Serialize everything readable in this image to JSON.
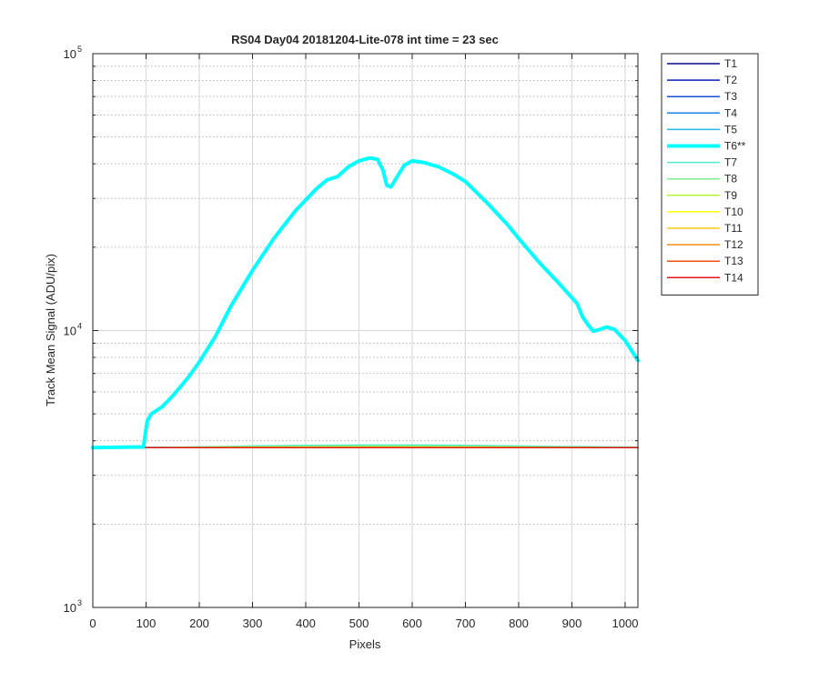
{
  "chart_data": {
    "type": "line",
    "title": "RS04 Day04 20181204-Lite-078 int time = 23 sec",
    "xlabel": "Pixels",
    "ylabel": "Track Mean Signal (ADU/pix)",
    "xlim": [
      0,
      1024
    ],
    "ylim": [
      1000,
      100000
    ],
    "yscale": "log",
    "grid": true,
    "legend_position": "outside-top-right",
    "x_ticks": [
      0,
      100,
      200,
      300,
      400,
      500,
      600,
      700,
      800,
      900,
      1000
    ],
    "x_tick_labels": [
      "0",
      "100",
      "200",
      "300",
      "400",
      "500",
      "600",
      "700",
      "800",
      "900",
      "1000"
    ],
    "y_ticks": [
      1000,
      10000,
      100000
    ],
    "y_tick_base": [
      "10",
      "10",
      "10"
    ],
    "y_tick_exp": [
      "3",
      "4",
      "5"
    ],
    "x": [
      0,
      100,
      200,
      300,
      400,
      500,
      600,
      700,
      800,
      900,
      1024
    ],
    "series": [
      {
        "name": "T1",
        "color": "#0a0a8c",
        "width": 1.5,
        "values": [
          3780,
          3780,
          3780,
          3780,
          3780,
          3780,
          3780,
          3780,
          3780,
          3780,
          3780
        ]
      },
      {
        "name": "T2",
        "color": "#0a1eb4",
        "width": 1.5,
        "values": [
          3780,
          3780,
          3780,
          3780,
          3780,
          3780,
          3780,
          3780,
          3780,
          3780,
          3780
        ]
      },
      {
        "name": "T3",
        "color": "#1450dc",
        "width": 1.5,
        "values": [
          3780,
          3780,
          3780,
          3780,
          3785,
          3785,
          3785,
          3780,
          3780,
          3780,
          3780
        ]
      },
      {
        "name": "T4",
        "color": "#1e82e6",
        "width": 1.5,
        "values": [
          3780,
          3780,
          3785,
          3790,
          3795,
          3800,
          3800,
          3795,
          3790,
          3785,
          3780
        ]
      },
      {
        "name": "T5",
        "color": "#28b4f0",
        "width": 1.5,
        "values": [
          3780,
          3785,
          3795,
          3810,
          3825,
          3835,
          3835,
          3825,
          3810,
          3795,
          3785
        ]
      },
      {
        "name": "T6**",
        "color": "#00ffff",
        "width": 4,
        "x": [
          0,
          95,
          102,
          110,
          130,
          150,
          180,
          200,
          230,
          260,
          300,
          340,
          380,
          420,
          440,
          460,
          480,
          500,
          520,
          535,
          545,
          552,
          560,
          570,
          585,
          600,
          620,
          650,
          680,
          700,
          740,
          780,
          800,
          840,
          880,
          910,
          920,
          930,
          940,
          950,
          965,
          980,
          1000,
          1024
        ],
        "values": [
          3780,
          3800,
          4700,
          5000,
          5300,
          5800,
          6800,
          7700,
          9500,
          12300,
          16500,
          21500,
          27000,
          32500,
          35000,
          36000,
          39000,
          41000,
          42000,
          41500,
          38000,
          33500,
          33000,
          35500,
          39500,
          41000,
          40500,
          39000,
          36500,
          34500,
          29000,
          24000,
          21500,
          17500,
          14500,
          12500,
          11200,
          10500,
          9950,
          10050,
          10300,
          10100,
          9200,
          7800
        ]
      },
      {
        "name": "T7",
        "color": "#50ebc8",
        "width": 1.5,
        "values": [
          3760,
          3775,
          3800,
          3830,
          3850,
          3860,
          3860,
          3850,
          3830,
          3810,
          3790
        ]
      },
      {
        "name": "T8",
        "color": "#78f08c",
        "width": 1.5,
        "values": [
          3770,
          3780,
          3795,
          3810,
          3820,
          3825,
          3825,
          3820,
          3810,
          3795,
          3780
        ]
      },
      {
        "name": "T9",
        "color": "#b4f03c",
        "width": 1.5,
        "values": [
          3780,
          3780,
          3785,
          3790,
          3795,
          3800,
          3800,
          3795,
          3790,
          3785,
          3780
        ]
      },
      {
        "name": "T10",
        "color": "#ffff00",
        "width": 1.5,
        "values": [
          3780,
          3780,
          3780,
          3785,
          3785,
          3785,
          3785,
          3785,
          3780,
          3780,
          3780
        ]
      },
      {
        "name": "T11",
        "color": "#fac814",
        "width": 1.5,
        "values": [
          3780,
          3780,
          3780,
          3780,
          3780,
          3780,
          3780,
          3780,
          3780,
          3780,
          3780
        ]
      },
      {
        "name": "T12",
        "color": "#fa8c14",
        "width": 1.5,
        "values": [
          3780,
          3780,
          3780,
          3780,
          3780,
          3780,
          3780,
          3780,
          3780,
          3780,
          3780
        ]
      },
      {
        "name": "T13",
        "color": "#f55014",
        "width": 1.5,
        "values": [
          3780,
          3780,
          3780,
          3780,
          3780,
          3780,
          3780,
          3780,
          3780,
          3780,
          3780
        ]
      },
      {
        "name": "T14",
        "color": "#e61414",
        "width": 1.5,
        "values": [
          3780,
          3780,
          3780,
          3780,
          3780,
          3780,
          3780,
          3780,
          3780,
          3780,
          3780
        ]
      }
    ]
  }
}
